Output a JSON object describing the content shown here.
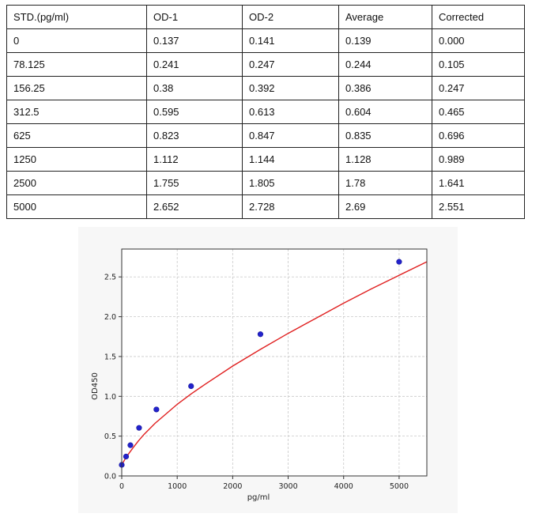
{
  "table": {
    "headers": [
      "STD.(pg/ml)",
      "OD-1",
      "OD-2",
      "Average",
      "Corrected"
    ],
    "rows": [
      [
        "0",
        "0.137",
        "0.141",
        "0.139",
        "0.000"
      ],
      [
        "78.125",
        "0.241",
        "0.247",
        "0.244",
        "0.105"
      ],
      [
        "156.25",
        "0.38",
        "0.392",
        "0.386",
        "0.247"
      ],
      [
        "312.5",
        "0.595",
        "0.613",
        "0.604",
        "0.465"
      ],
      [
        "625",
        "0.823",
        "0.847",
        "0.835",
        "0.696"
      ],
      [
        "1250",
        "1.112",
        "1.144",
        "1.128",
        "0.989"
      ],
      [
        "2500",
        "1.755",
        "1.805",
        "1.78",
        "1.641"
      ],
      [
        "5000",
        "2.652",
        "2.728",
        "2.69",
        "2.551"
      ]
    ]
  },
  "chart_data": {
    "type": "scatter",
    "xlabel": "pg/ml",
    "ylabel": "OD450",
    "xlim": [
      0,
      5500
    ],
    "ylim": [
      0,
      2.85
    ],
    "xticks": [
      0,
      1000,
      2000,
      3000,
      4000,
      5000
    ],
    "yticks": [
      0.0,
      0.5,
      1.0,
      1.5,
      2.0,
      2.5
    ],
    "xtick_labels": [
      "0",
      "1000",
      "2000",
      "3000",
      "4000",
      "5000"
    ],
    "ytick_labels": [
      "0.0",
      "0.5",
      "1.0",
      "1.5",
      "2.0",
      "2.5"
    ],
    "grid": true,
    "points": {
      "x": [
        0,
        78.125,
        156.25,
        312.5,
        625,
        1250,
        2500,
        5000
      ],
      "y": [
        0.139,
        0.244,
        0.386,
        0.604,
        0.835,
        1.128,
        1.78,
        2.69
      ],
      "color": "#2222cc"
    },
    "fit_curve": {
      "color": "#e02020",
      "x": [
        0,
        50,
        100,
        200,
        300,
        400,
        600,
        800,
        1000,
        1250,
        1500,
        2000,
        2500,
        3000,
        3500,
        4000,
        4500,
        5000,
        5500
      ],
      "y": [
        0.139,
        0.2,
        0.255,
        0.35,
        0.44,
        0.52,
        0.66,
        0.78,
        0.9,
        1.03,
        1.15,
        1.38,
        1.59,
        1.79,
        1.98,
        2.17,
        2.35,
        2.52,
        2.69
      ]
    }
  }
}
